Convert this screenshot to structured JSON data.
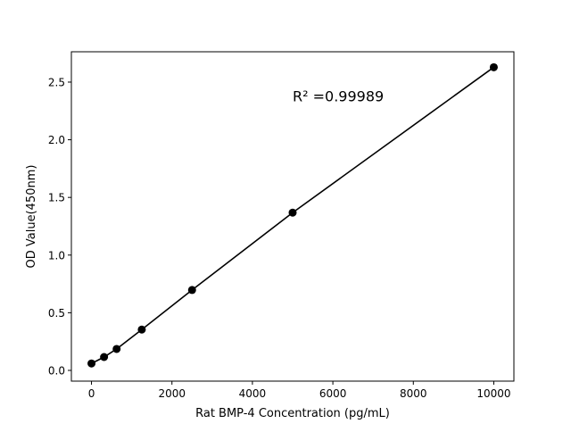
{
  "chart_data": {
    "type": "line",
    "title": "",
    "xlabel": "Rat BMP-4 Concentration (pg/mL)",
    "ylabel": "OD Value(450nm)",
    "xlim": [
      -500,
      10500
    ],
    "ylim": [
      -0.093,
      2.763
    ],
    "xticks": [
      0,
      2000,
      4000,
      6000,
      8000,
      10000
    ],
    "yticks": [
      0.0,
      0.5,
      1.0,
      1.5,
      2.0,
      2.5
    ],
    "xtick_labels": [
      "0",
      "2000",
      "4000",
      "6000",
      "8000",
      "10000"
    ],
    "ytick_labels": [
      "0.0",
      "0.5",
      "1.0",
      "1.5",
      "2.0",
      "2.5"
    ],
    "grid": false,
    "series": [
      {
        "x": [
          0,
          312.5,
          625,
          1250,
          2500,
          5000,
          10000
        ],
        "y": [
          0.06,
          0.116,
          0.186,
          0.354,
          0.697,
          1.368,
          2.629
        ],
        "color": "#000000",
        "marker": "circle"
      }
    ],
    "annotations": [
      {
        "text": "R² =0.99989",
        "x": 5000,
        "y": 2.38
      }
    ]
  }
}
